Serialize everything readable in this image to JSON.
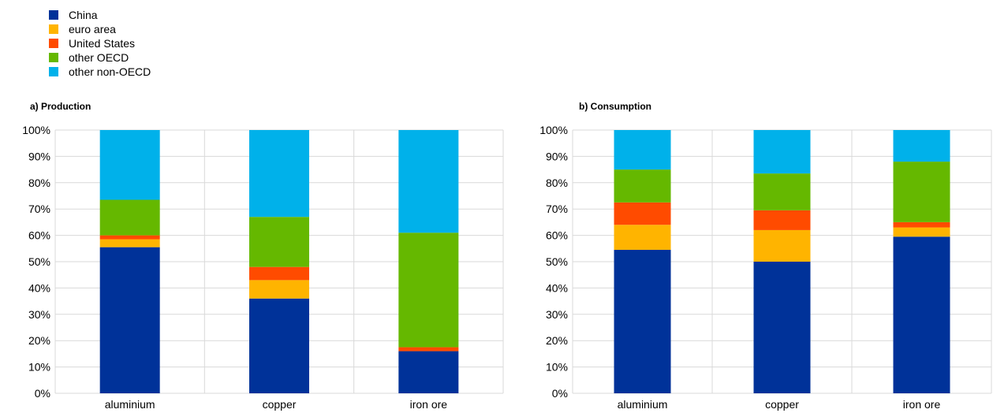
{
  "legend": [
    {
      "label": "China",
      "color": "#003299"
    },
    {
      "label": "euro area",
      "color": "#FFB400"
    },
    {
      "label": "United States",
      "color": "#FF4B00"
    },
    {
      "label": "other OECD",
      "color": "#65B800"
    },
    {
      "label": "other non-OECD",
      "color": "#00B1EA"
    }
  ],
  "chart_data": [
    {
      "type": "bar",
      "stacked": true,
      "title": "a) Production",
      "categories": [
        "aluminium",
        "copper",
        "iron ore"
      ],
      "series": [
        {
          "name": "China",
          "values": [
            55.5,
            36,
            16
          ]
        },
        {
          "name": "euro area",
          "values": [
            3,
            7,
            0
          ]
        },
        {
          "name": "United States",
          "values": [
            1.5,
            5,
            1.5
          ]
        },
        {
          "name": "other OECD",
          "values": [
            13.5,
            19,
            43.5
          ]
        },
        {
          "name": "other non-OECD",
          "values": [
            26.5,
            33,
            39
          ]
        }
      ],
      "ylim": [
        0,
        100
      ],
      "yticks": [
        "0%",
        "10%",
        "20%",
        "30%",
        "40%",
        "50%",
        "60%",
        "70%",
        "80%",
        "90%",
        "100%"
      ],
      "grid": true
    },
    {
      "type": "bar",
      "stacked": true,
      "title": "b) Consumption",
      "categories": [
        "aluminium",
        "copper",
        "iron ore"
      ],
      "series": [
        {
          "name": "China",
          "values": [
            54.5,
            50,
            59.5
          ]
        },
        {
          "name": "euro area",
          "values": [
            9.5,
            12,
            3.5
          ]
        },
        {
          "name": "United States",
          "values": [
            8.5,
            7.5,
            2
          ]
        },
        {
          "name": "other OECD",
          "values": [
            12.5,
            14,
            23
          ]
        },
        {
          "name": "other non-OECD",
          "values": [
            15,
            16.5,
            12
          ]
        }
      ],
      "ylim": [
        0,
        100
      ],
      "yticks": [
        "0%",
        "10%",
        "20%",
        "30%",
        "40%",
        "50%",
        "60%",
        "70%",
        "80%",
        "90%",
        "100%"
      ],
      "grid": true
    }
  ]
}
